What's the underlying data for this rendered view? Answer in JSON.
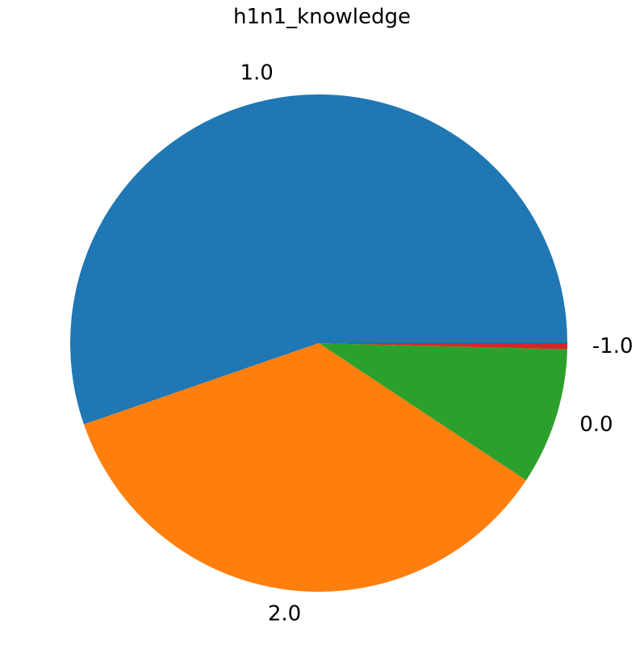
{
  "chart_data": {
    "type": "pie",
    "title": "h1n1_knowledge",
    "slices": [
      {
        "label": "1.0",
        "value": 55.3,
        "color": "#1f77b4"
      },
      {
        "label": "2.0",
        "value": 35.4,
        "color": "#ff7f0e"
      },
      {
        "label": "0.0",
        "value": 8.9,
        "color": "#2ca02c"
      },
      {
        "label": "-1.0",
        "value": 0.4,
        "color": "#d62728"
      }
    ],
    "start_angle_deg": 0,
    "direction": "counterclockwise",
    "legend": "none"
  }
}
